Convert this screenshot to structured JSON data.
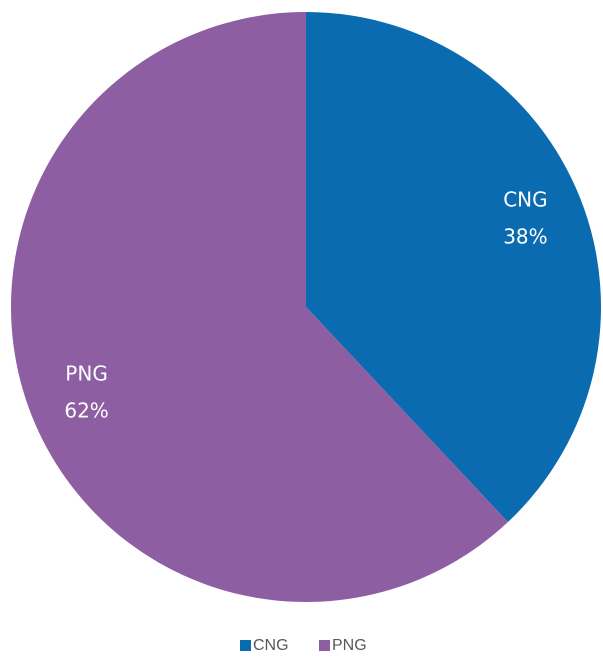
{
  "chart_data": {
    "type": "pie",
    "categories": [
      "CNG",
      "PNG"
    ],
    "values": [
      38,
      62
    ],
    "value_labels": [
      "38%",
      "62%"
    ],
    "colors": [
      "#0a6bb1",
      "#8e5ea2"
    ],
    "legend": "bottom"
  }
}
